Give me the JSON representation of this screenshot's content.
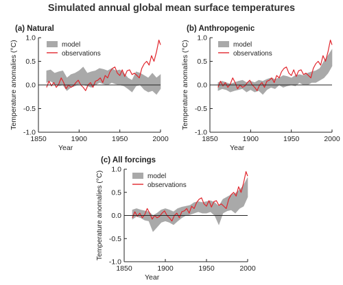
{
  "title": "Simulated annual global mean surface temperatures",
  "colors": {
    "model": "#a9a9a9",
    "observations": "#e0242b",
    "axis": "#222222",
    "zero_line": "#222222"
  },
  "chart_data": [
    {
      "type": "area",
      "panel_title": "(a) Natural",
      "xlabel": "Year",
      "ylabel": "Temperature anomalies (°C)",
      "xlim": [
        1850,
        2000
      ],
      "ylim": [
        -1.0,
        1.0
      ],
      "xticks": [
        1850,
        1900,
        1950,
        2000
      ],
      "yticks": [
        -1.0,
        -0.5,
        0.0,
        0.5,
        1.0
      ],
      "ytick_labels": [
        "-1.0",
        "-0.5",
        "0.0",
        "0.5",
        "1.0"
      ],
      "legend": "top-left",
      "series": [
        {
          "name": "model",
          "type": "band",
          "x": [
            1860,
            1865,
            1870,
            1875,
            1880,
            1885,
            1890,
            1895,
            1900,
            1905,
            1910,
            1915,
            1920,
            1925,
            1930,
            1935,
            1940,
            1945,
            1950,
            1955,
            1960,
            1965,
            1970,
            1975,
            1980,
            1985,
            1990,
            1995,
            2000
          ],
          "lower": [
            0.05,
            0.08,
            0.02,
            -0.02,
            0.0,
            -0.12,
            -0.05,
            -0.02,
            0.02,
            0.0,
            -0.02,
            -0.05,
            0.0,
            0.05,
            0.02,
            0.0,
            0.05,
            0.02,
            0.0,
            -0.02,
            -0.08,
            -0.15,
            -0.02,
            0.0,
            -0.1,
            -0.15,
            -0.12,
            -0.2,
            -0.08
          ],
          "upper": [
            0.3,
            0.32,
            0.25,
            0.28,
            0.3,
            0.15,
            0.22,
            0.25,
            0.3,
            0.38,
            0.25,
            0.28,
            0.3,
            0.35,
            0.33,
            0.3,
            0.35,
            0.3,
            0.32,
            0.25,
            0.15,
            0.1,
            0.28,
            0.25,
            0.2,
            0.15,
            0.25,
            0.15,
            0.22
          ]
        },
        {
          "name": "observations",
          "type": "line",
          "x": [
            1860,
            1863,
            1866,
            1869,
            1872,
            1875,
            1878,
            1881,
            1884,
            1887,
            1890,
            1893,
            1896,
            1899,
            1902,
            1905,
            1908,
            1911,
            1914,
            1917,
            1920,
            1923,
            1926,
            1929,
            1932,
            1935,
            1938,
            1941,
            1944,
            1947,
            1950,
            1953,
            1956,
            1959,
            1962,
            1965,
            1968,
            1971,
            1974,
            1977,
            1980,
            1983,
            1986,
            1989,
            1992,
            1995,
            1998,
            2000
          ],
          "y": [
            -0.05,
            0.08,
            -0.02,
            0.05,
            -0.05,
            0.02,
            0.15,
            0.05,
            -0.08,
            0.0,
            -0.05,
            -0.02,
            0.05,
            0.1,
            0.0,
            -0.05,
            -0.12,
            0.0,
            0.05,
            -0.05,
            0.08,
            0.1,
            0.15,
            0.05,
            0.2,
            0.15,
            0.28,
            0.35,
            0.38,
            0.25,
            0.2,
            0.32,
            0.18,
            0.3,
            0.32,
            0.22,
            0.25,
            0.2,
            0.15,
            0.35,
            0.45,
            0.5,
            0.42,
            0.62,
            0.5,
            0.7,
            0.95,
            0.85
          ]
        }
      ]
    },
    {
      "type": "area",
      "panel_title": "(b) Anthropogenic",
      "xlabel": "Year",
      "ylabel": "Temperature anomalies (°C)",
      "xlim": [
        1850,
        2000
      ],
      "ylim": [
        -1.0,
        1.0
      ],
      "xticks": [
        1850,
        1900,
        1950,
        2000
      ],
      "yticks": [
        -1.0,
        -0.5,
        0.0,
        0.5,
        1.0
      ],
      "ytick_labels": [
        "-1.0",
        "-0.5",
        "0.0",
        "0.5",
        "1.0"
      ],
      "legend": "top-left",
      "series": [
        {
          "name": "model",
          "type": "band",
          "x": [
            1860,
            1865,
            1870,
            1875,
            1880,
            1885,
            1890,
            1895,
            1900,
            1905,
            1910,
            1915,
            1920,
            1925,
            1930,
            1935,
            1940,
            1945,
            1950,
            1955,
            1960,
            1965,
            1970,
            1975,
            1980,
            1985,
            1990,
            1995,
            2000
          ],
          "lower": [
            -0.12,
            -0.08,
            -0.1,
            -0.15,
            -0.12,
            -0.1,
            -0.08,
            -0.15,
            -0.1,
            -0.15,
            -0.12,
            -0.2,
            -0.1,
            -0.05,
            -0.08,
            0.0,
            -0.05,
            -0.02,
            0.0,
            -0.02,
            0.05,
            0.0,
            0.0,
            0.05,
            0.05,
            0.1,
            0.15,
            0.25,
            0.4
          ],
          "upper": [
            0.05,
            0.08,
            0.05,
            0.02,
            0.05,
            0.08,
            0.1,
            0.05,
            0.08,
            0.05,
            0.1,
            0.08,
            0.12,
            0.15,
            0.12,
            0.15,
            0.2,
            0.18,
            0.15,
            0.2,
            0.22,
            0.2,
            0.25,
            0.28,
            0.3,
            0.35,
            0.5,
            0.62,
            0.75
          ]
        },
        {
          "name": "observations",
          "type": "line",
          "x": [
            1860,
            1863,
            1866,
            1869,
            1872,
            1875,
            1878,
            1881,
            1884,
            1887,
            1890,
            1893,
            1896,
            1899,
            1902,
            1905,
            1908,
            1911,
            1914,
            1917,
            1920,
            1923,
            1926,
            1929,
            1932,
            1935,
            1938,
            1941,
            1944,
            1947,
            1950,
            1953,
            1956,
            1959,
            1962,
            1965,
            1968,
            1971,
            1974,
            1977,
            1980,
            1983,
            1986,
            1989,
            1992,
            1995,
            1998,
            2000
          ],
          "y": [
            -0.05,
            0.08,
            -0.02,
            0.05,
            -0.05,
            0.02,
            0.15,
            0.05,
            -0.08,
            0.0,
            -0.05,
            -0.02,
            0.05,
            0.1,
            0.0,
            -0.05,
            -0.12,
            0.0,
            0.05,
            -0.05,
            0.08,
            0.1,
            0.15,
            0.05,
            0.2,
            0.15,
            0.28,
            0.35,
            0.38,
            0.25,
            0.2,
            0.32,
            0.18,
            0.3,
            0.32,
            0.22,
            0.25,
            0.2,
            0.15,
            0.35,
            0.45,
            0.5,
            0.42,
            0.62,
            0.5,
            0.7,
            0.95,
            0.85
          ]
        }
      ]
    },
    {
      "type": "area",
      "panel_title": "(c) All forcings",
      "xlabel": "Year",
      "ylabel": "Temperature anomalies (°C)",
      "xlim": [
        1850,
        2000
      ],
      "ylim": [
        -1.0,
        1.0
      ],
      "xticks": [
        1850,
        1900,
        1950,
        2000
      ],
      "yticks": [
        -1.0,
        -0.5,
        0.0,
        0.5,
        1.0
      ],
      "ytick_labels": [
        "-1.0",
        "-0.5",
        "0.0",
        "0.5",
        "1.0"
      ],
      "legend": "top-left",
      "series": [
        {
          "name": "model",
          "type": "band",
          "x": [
            1860,
            1865,
            1870,
            1875,
            1880,
            1885,
            1890,
            1895,
            1900,
            1905,
            1910,
            1915,
            1920,
            1925,
            1930,
            1935,
            1940,
            1945,
            1950,
            1955,
            1960,
            1965,
            1970,
            1975,
            1980,
            1985,
            1990,
            1995,
            2000
          ],
          "lower": [
            -0.08,
            -0.02,
            -0.05,
            -0.1,
            -0.12,
            -0.35,
            -0.25,
            -0.15,
            -0.12,
            -0.15,
            -0.2,
            -0.12,
            -0.05,
            0.0,
            0.02,
            0.05,
            0.08,
            0.05,
            0.05,
            0.08,
            0.0,
            -0.2,
            0.05,
            0.1,
            0.12,
            0.05,
            0.15,
            0.2,
            0.4
          ],
          "upper": [
            0.12,
            0.15,
            0.12,
            0.1,
            0.08,
            0.0,
            0.05,
            0.12,
            0.15,
            0.12,
            0.08,
            0.15,
            0.18,
            0.2,
            0.22,
            0.28,
            0.3,
            0.28,
            0.3,
            0.32,
            0.28,
            0.2,
            0.35,
            0.4,
            0.45,
            0.48,
            0.55,
            0.65,
            0.82
          ]
        },
        {
          "name": "observations",
          "type": "line",
          "x": [
            1860,
            1863,
            1866,
            1869,
            1872,
            1875,
            1878,
            1881,
            1884,
            1887,
            1890,
            1893,
            1896,
            1899,
            1902,
            1905,
            1908,
            1911,
            1914,
            1917,
            1920,
            1923,
            1926,
            1929,
            1932,
            1935,
            1938,
            1941,
            1944,
            1947,
            1950,
            1953,
            1956,
            1959,
            1962,
            1965,
            1968,
            1971,
            1974,
            1977,
            1980,
            1983,
            1986,
            1989,
            1992,
            1995,
            1998,
            2000
          ],
          "y": [
            -0.05,
            0.08,
            -0.02,
            0.05,
            -0.05,
            0.02,
            0.15,
            0.05,
            -0.08,
            0.0,
            -0.05,
            -0.02,
            0.05,
            0.1,
            0.0,
            -0.05,
            -0.12,
            0.0,
            0.05,
            -0.05,
            0.08,
            0.1,
            0.15,
            0.05,
            0.2,
            0.15,
            0.28,
            0.35,
            0.38,
            0.25,
            0.2,
            0.32,
            0.18,
            0.3,
            0.32,
            0.22,
            0.25,
            0.2,
            0.15,
            0.35,
            0.45,
            0.5,
            0.42,
            0.62,
            0.5,
            0.7,
            0.95,
            0.85
          ]
        }
      ]
    }
  ]
}
